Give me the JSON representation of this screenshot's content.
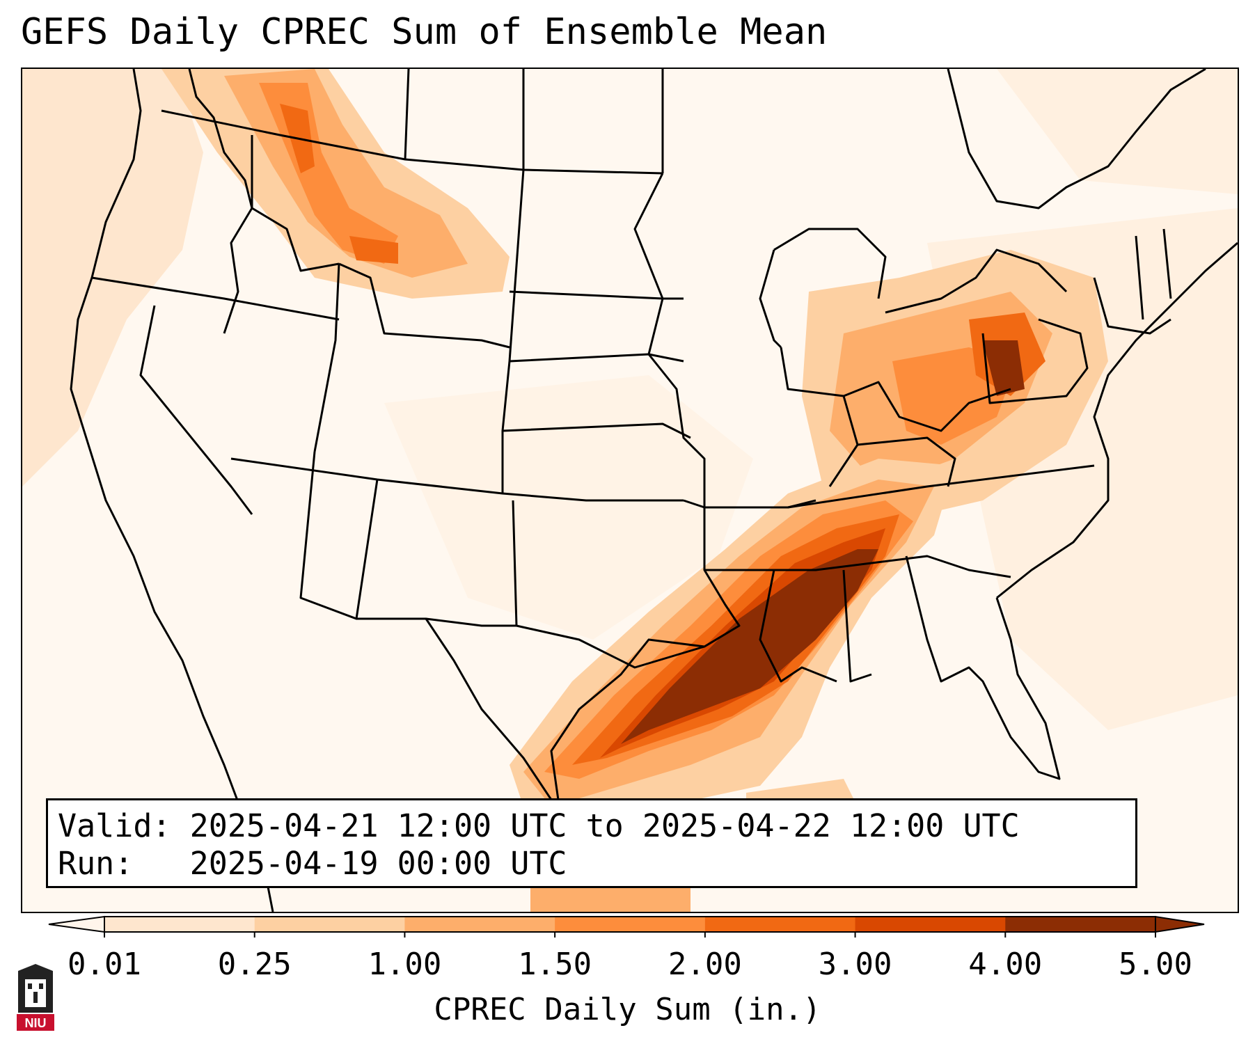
{
  "title": "GEFS Daily CPREC Sum of Ensemble Mean",
  "info": {
    "valid_label": "Valid:",
    "valid_value": "2025-04-21 12:00 UTC to 2025-04-22 12:00 UTC",
    "run_label": "Run:",
    "run_value": "2025-04-19 00:00 UTC"
  },
  "colorbar": {
    "label": "CPREC Daily Sum (in.)",
    "ticks": [
      "0.01",
      "0.25",
      "1.00",
      "1.50",
      "2.00",
      "3.00",
      "4.00",
      "5.00"
    ],
    "colors": [
      "#fff5eb",
      "#fee6ce",
      "#fdd0a2",
      "#fdae6b",
      "#fd8d3c",
      "#f16913",
      "#d94801",
      "#8c2d04"
    ],
    "extend": "both"
  },
  "logo": {
    "text": "NIU"
  },
  "colors": {
    "level1": "#fff5eb",
    "level2": "#fee6ce",
    "level3": "#fdd0a2",
    "level4": "#fdae6b",
    "level5": "#fd8d3c",
    "level6": "#f16913",
    "level7": "#d94801",
    "level8": "#8c2d04"
  }
}
